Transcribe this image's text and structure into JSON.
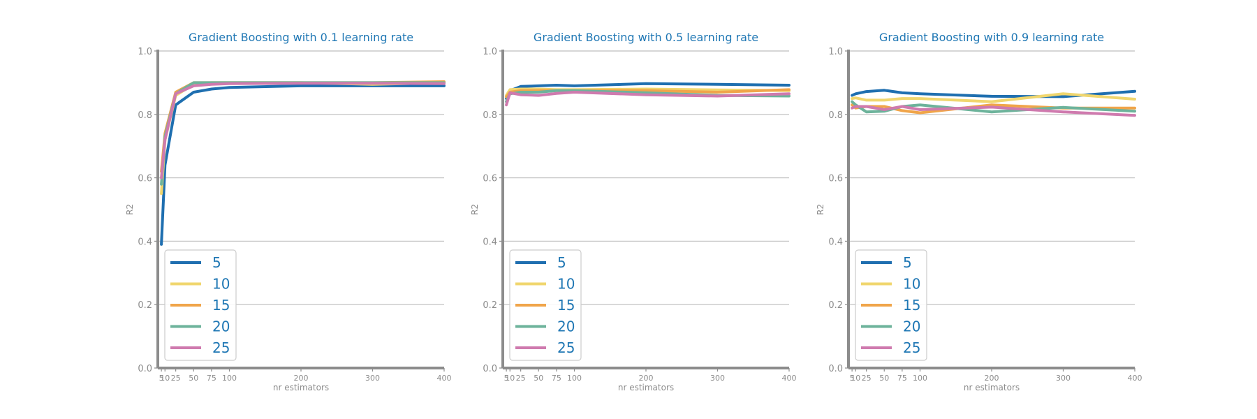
{
  "colors": {
    "title": "#1f77b4",
    "axis": "#8c8c8c",
    "grid": "#c8c8c8",
    "legend_text": "#1f77b4",
    "series": [
      "#1f6fb0",
      "#f0d66e",
      "#f0a54a",
      "#6db39b",
      "#cf7aae"
    ]
  },
  "chart_data": [
    {
      "type": "line",
      "title": "Gradient Boosting with 0.1 learning rate",
      "xlabel": "nr estimators",
      "ylabel": "R2",
      "x": [
        5,
        10,
        25,
        50,
        75,
        100,
        200,
        300,
        400
      ],
      "x_ticks": [
        "5",
        "10",
        "25",
        "50",
        "75",
        "100",
        "200",
        "300",
        "400"
      ],
      "y_ticks": [
        "0.0",
        "0.2",
        "0.4",
        "0.6",
        "0.8",
        "1.0"
      ],
      "xlim": [
        0,
        400
      ],
      "ylim": [
        0,
        1
      ],
      "grid": "horizontal",
      "legend_position": "lower-left",
      "series": [
        {
          "name": "5",
          "values": [
            0.39,
            0.64,
            0.83,
            0.87,
            0.88,
            0.885,
            0.89,
            0.89,
            0.89
          ]
        },
        {
          "name": "10",
          "values": [
            0.55,
            0.72,
            0.86,
            0.895,
            0.9,
            0.9,
            0.9,
            0.895,
            0.9
          ]
        },
        {
          "name": "15",
          "values": [
            0.62,
            0.74,
            0.87,
            0.9,
            0.9,
            0.9,
            0.9,
            0.9,
            0.903
          ]
        },
        {
          "name": "20",
          "values": [
            0.58,
            0.73,
            0.865,
            0.9,
            0.9,
            0.9,
            0.9,
            0.9,
            0.9
          ]
        },
        {
          "name": "25",
          "values": [
            0.6,
            0.72,
            0.865,
            0.89,
            0.895,
            0.897,
            0.898,
            0.898,
            0.897
          ]
        }
      ]
    },
    {
      "type": "line",
      "title": "Gradient Boosting with 0.5 learning rate",
      "xlabel": "nr estimators",
      "ylabel": "R2",
      "x": [
        5,
        10,
        25,
        50,
        75,
        100,
        200,
        300,
        400
      ],
      "x_ticks": [
        "5",
        "10",
        "25",
        "50",
        "75",
        "100",
        "200",
        "300",
        "400"
      ],
      "y_ticks": [
        "0.0",
        "0.2",
        "0.4",
        "0.6",
        "0.8",
        "1.0"
      ],
      "xlim": [
        0,
        400
      ],
      "ylim": [
        0,
        1
      ],
      "grid": "horizontal",
      "legend_position": "lower-left",
      "series": [
        {
          "name": "5",
          "values": [
            0.85,
            0.875,
            0.888,
            0.89,
            0.892,
            0.89,
            0.897,
            0.895,
            0.892
          ]
        },
        {
          "name": "10",
          "values": [
            0.86,
            0.878,
            0.88,
            0.88,
            0.878,
            0.878,
            0.88,
            0.877,
            0.875
          ]
        },
        {
          "name": "15",
          "values": [
            0.855,
            0.87,
            0.875,
            0.875,
            0.875,
            0.875,
            0.875,
            0.87,
            0.878
          ]
        },
        {
          "name": "20",
          "values": [
            0.84,
            0.865,
            0.87,
            0.87,
            0.875,
            0.875,
            0.868,
            0.86,
            0.858
          ]
        },
        {
          "name": "25",
          "values": [
            0.83,
            0.868,
            0.862,
            0.86,
            0.866,
            0.87,
            0.862,
            0.858,
            0.865
          ]
        }
      ]
    },
    {
      "type": "line",
      "title": "Gradient Boosting with 0.9 learning rate",
      "xlabel": "nr estimators",
      "ylabel": "R2",
      "x": [
        5,
        10,
        25,
        50,
        75,
        100,
        200,
        300,
        400
      ],
      "x_ticks": [
        "5",
        "10",
        "25",
        "50",
        "75",
        "100",
        "200",
        "300",
        "400"
      ],
      "y_ticks": [
        "0.0",
        "0.2",
        "0.4",
        "0.6",
        "0.8",
        "1.0"
      ],
      "xlim": [
        0,
        400
      ],
      "ylim": [
        0,
        1
      ],
      "grid": "horizontal",
      "legend_position": "lower-left",
      "series": [
        {
          "name": "5",
          "values": [
            0.86,
            0.865,
            0.872,
            0.876,
            0.868,
            0.865,
            0.857,
            0.856,
            0.873
          ]
        },
        {
          "name": "10",
          "values": [
            0.85,
            0.852,
            0.845,
            0.845,
            0.85,
            0.85,
            0.84,
            0.865,
            0.848
          ]
        },
        {
          "name": "15",
          "values": [
            0.83,
            0.82,
            0.825,
            0.825,
            0.812,
            0.805,
            0.83,
            0.82,
            0.82
          ]
        },
        {
          "name": "20",
          "values": [
            0.84,
            0.83,
            0.808,
            0.81,
            0.825,
            0.83,
            0.808,
            0.822,
            0.81
          ]
        },
        {
          "name": "25",
          "values": [
            0.82,
            0.825,
            0.825,
            0.815,
            0.825,
            0.815,
            0.823,
            0.808,
            0.797
          ]
        }
      ]
    }
  ]
}
